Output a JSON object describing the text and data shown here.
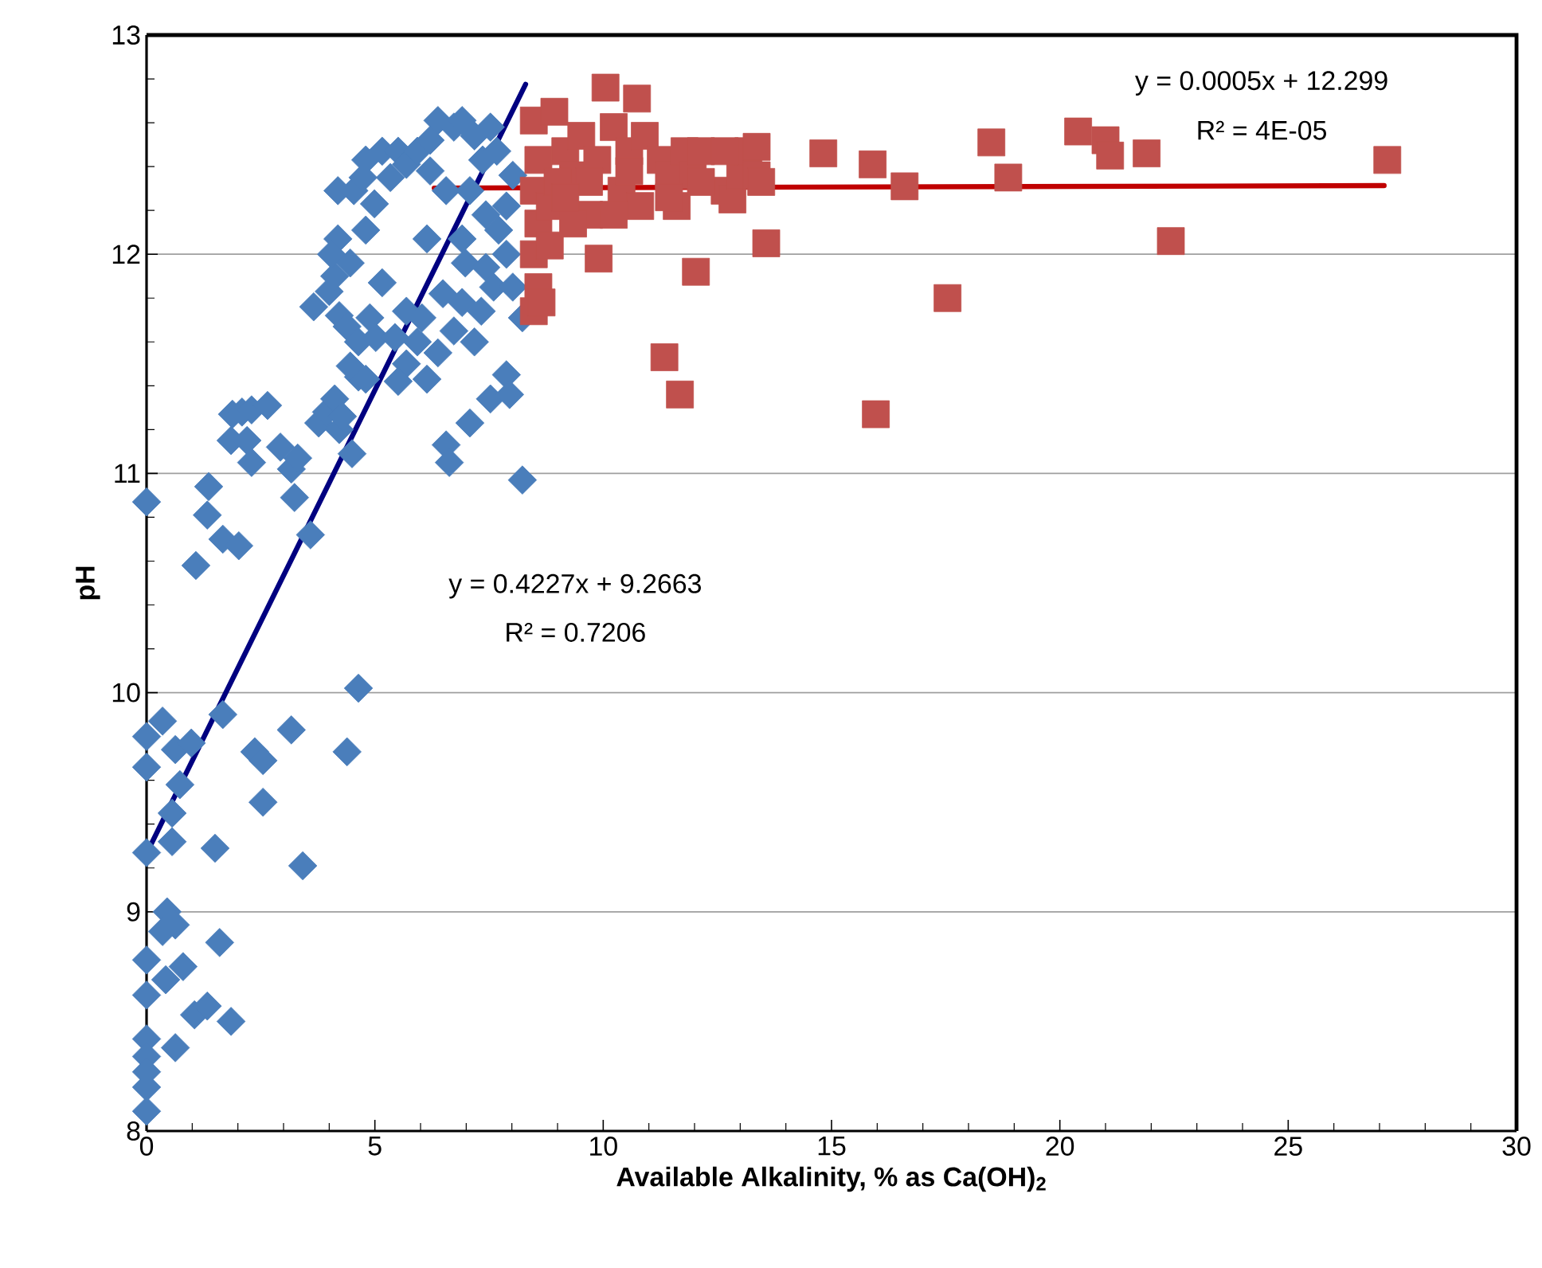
{
  "chart_data": {
    "type": "scatter",
    "xlabel": "Available Alkalinity, % as Ca(OH)$_{2}$",
    "ylabel": "pH",
    "xlim": [
      0,
      30
    ],
    "ylim": [
      8,
      13
    ],
    "xticks": [
      0,
      5,
      10,
      15,
      20,
      25,
      30
    ],
    "yticks": [
      8,
      9,
      10,
      11,
      12,
      13
    ],
    "grid": "y",
    "annotations": [
      "y = 0.4227x + 9.2663",
      "R² = 0.7206",
      "y = 0.0005x + 12.299",
      "R² = 4E-05"
    ],
    "series": [
      {
        "marker": "diamond",
        "color": "#4a7ebb",
        "x": [
          0,
          0,
          0,
          0,
          0,
          0,
          0,
          0,
          0,
          0,
          0,
          0.35,
          0.63,
          0.98,
          0.73,
          0.56,
          0.56,
          0.45,
          0.63,
          0.35,
          0.8,
          0.42,
          0.63,
          1.05,
          1.33,
          1.85,
          1.6,
          1.5,
          1.67,
          2.37,
          2.55,
          2.55,
          3.17,
          3.42,
          4.39,
          4.64,
          1.08,
          1.33,
          1.36,
          1.67,
          2.02,
          1.88,
          2.09,
          2.3,
          2.65,
          1.85,
          2.2,
          2.3,
          2.93,
          3.17,
          3.31,
          3.24,
          3.59,
          3.77,
          3.94,
          4.12,
          4.22,
          4.29,
          4.5,
          4.64,
          4.8,
          4.46,
          3.66,
          4.0,
          4.12,
          4.19,
          4.05,
          4.46,
          4.8,
          4.22,
          4.39,
          4.64,
          4.89,
          5.02,
          5.16,
          5.44,
          5.69,
          5.69,
          5.51,
          5.93,
          6.14,
          6.03,
          6.38,
          6.49,
          6.56,
          6.63,
          6.73,
          6.91,
          6.98,
          7.18,
          7.08,
          7.33,
          7.43,
          7.53,
          7.88,
          7.95,
          8.23,
          8.23,
          7.71,
          7.88,
          7.6,
          8.02,
          4.19,
          4.54,
          4.74,
          4.99,
          4.8,
          5.16,
          5.51,
          5.69,
          5.93,
          6.21,
          6.38,
          6.73,
          6.91,
          7.18,
          7.36,
          7.53,
          7.67,
          6.56,
          7.08,
          6.14,
          6.91,
          7.43,
          7.88,
          8.02,
          6.21,
          5.34
        ],
        "values": [
          10.87,
          9.8,
          9.66,
          9.27,
          8.78,
          8.62,
          8.42,
          8.34,
          8.27,
          8.2,
          8.09,
          9.87,
          9.74,
          9.77,
          9.58,
          9.45,
          9.32,
          9.0,
          8.94,
          8.91,
          8.75,
          8.69,
          8.38,
          8.53,
          8.57,
          8.5,
          8.86,
          9.29,
          9.9,
          9.73,
          9.69,
          9.5,
          9.83,
          9.21,
          9.73,
          10.02,
          10.58,
          10.81,
          10.94,
          10.7,
          10.67,
          11.27,
          11.28,
          11.29,
          11.31,
          11.15,
          11.15,
          11.05,
          11.12,
          11.02,
          11.07,
          10.89,
          10.72,
          11.23,
          11.28,
          11.34,
          11.2,
          11.26,
          11.09,
          11.44,
          11.43,
          11.49,
          11.76,
          11.83,
          11.9,
          12.07,
          12.0,
          11.96,
          12.11,
          11.72,
          11.67,
          11.6,
          11.71,
          11.62,
          11.87,
          11.62,
          11.74,
          11.5,
          11.42,
          11.6,
          11.43,
          11.71,
          11.55,
          11.82,
          11.13,
          11.05,
          11.65,
          11.78,
          11.96,
          11.6,
          11.23,
          11.74,
          11.94,
          11.34,
          11.45,
          11.36,
          10.97,
          11.71,
          12.11,
          12.0,
          11.85,
          11.85,
          12.29,
          12.29,
          12.35,
          12.23,
          12.43,
          12.47,
          12.47,
          12.41,
          12.47,
          12.52,
          12.61,
          12.58,
          12.61,
          12.54,
          12.43,
          12.58,
          12.47,
          12.29,
          12.29,
          12.07,
          12.07,
          12.18,
          12.22,
          12.36,
          12.38,
          12.35
        ]
      },
      {
        "marker": "square",
        "color": "#c0504d",
        "x": [
          8.48,
          8.58,
          8.48,
          8.58,
          8.48,
          8.58,
          8.48,
          8.83,
          8.93,
          8.83,
          8.65,
          9.17,
          9.34,
          9.52,
          9.69,
          9.87,
          10.05,
          10.23,
          9.9,
          10.4,
          10.57,
          10.74,
          10.81,
          10.91,
          11.26,
          11.34,
          11.44,
          11.61,
          11.68,
          11.78,
          11.96,
          12.03,
          12.14,
          12.66,
          12.83,
          13.0,
          13.18,
          13.36,
          13.36,
          13.46,
          13.57,
          9.69,
          9.34,
          9.0,
          10.57,
          10.23,
          9.17,
          11.44,
          12.14,
          12.66,
          14.82,
          15.9,
          15.97,
          16.6,
          17.54,
          18.5,
          18.87,
          20.4,
          21.0,
          21.1,
          21.9,
          22.43,
          27.17
        ],
        "values": [
          12.61,
          12.43,
          12.29,
          12.14,
          12.0,
          11.85,
          11.74,
          12.22,
          12.65,
          12.04,
          11.78,
          12.47,
          12.36,
          12.54,
          12.18,
          12.43,
          12.76,
          12.58,
          11.98,
          12.29,
          12.47,
          12.71,
          12.22,
          12.54,
          12.43,
          11.53,
          12.36,
          12.22,
          11.36,
          12.47,
          12.36,
          11.92,
          12.47,
          12.29,
          12.25,
          12.36,
          12.47,
          12.49,
          12.36,
          12.33,
          12.05,
          12.33,
          12.14,
          12.33,
          12.38,
          12.18,
          12.26,
          12.26,
          12.33,
          12.47,
          12.46,
          12.41,
          11.27,
          12.31,
          11.8,
          12.51,
          12.35,
          12.56,
          12.52,
          12.45,
          12.46,
          12.06,
          12.43
        ]
      },
      {
        "type": "line",
        "color": "#000080",
        "x": [
          0,
          8.3
        ],
        "values": [
          9.266,
          12.775
        ]
      },
      {
        "type": "line",
        "color": "#c00000",
        "x": [
          6.3,
          27.1
        ],
        "values": [
          12.302,
          12.313
        ]
      }
    ]
  }
}
